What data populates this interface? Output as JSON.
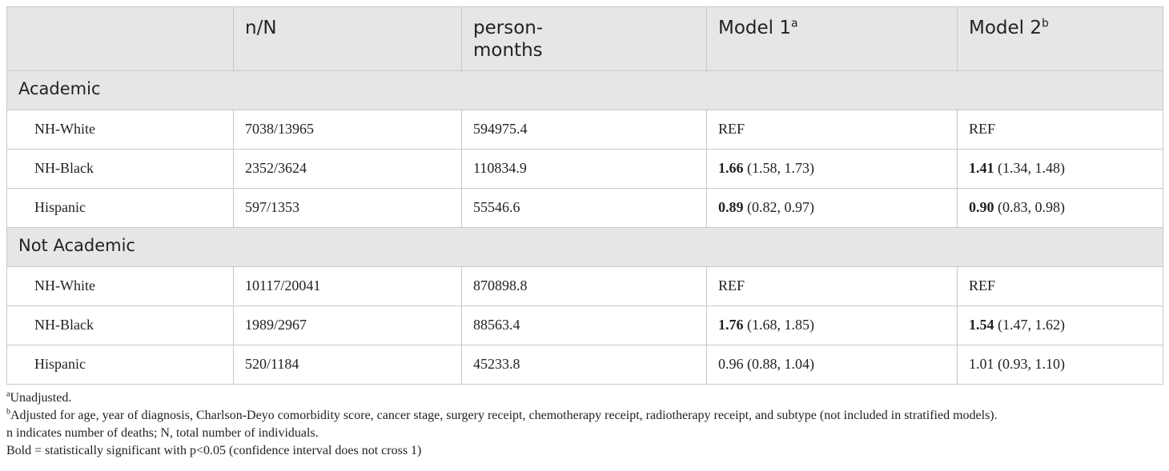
{
  "header": {
    "col1": "",
    "col2": "n/N",
    "col3_line1": "person-",
    "col3_line2": "months",
    "col4": "Model 1",
    "col4_sup": "a",
    "col5": "Model 2",
    "col5_sup": "b"
  },
  "sections": [
    {
      "label": "Academic",
      "rows": [
        {
          "group": "NH-White",
          "nN": "7038/13965",
          "pm": "594975.4",
          "m1_est": "REF",
          "m1_ci": "",
          "m1_bold": false,
          "m2_est": "REF",
          "m2_ci": "",
          "m2_bold": false
        },
        {
          "group": "NH-Black",
          "nN": "2352/3624",
          "pm": "110834.9",
          "m1_est": "1.66",
          "m1_ci": " (1.58, 1.73)",
          "m1_bold": true,
          "m2_est": "1.41",
          "m2_ci": " (1.34, 1.48)",
          "m2_bold": true
        },
        {
          "group": "Hispanic",
          "nN": "597/1353",
          "pm": "55546.6",
          "m1_est": "0.89",
          "m1_ci": " (0.82, 0.97)",
          "m1_bold": true,
          "m2_est": "0.90",
          "m2_ci": " (0.83, 0.98)",
          "m2_bold": true
        }
      ]
    },
    {
      "label": "Not Academic",
      "rows": [
        {
          "group": "NH-White",
          "nN": "10117/20041",
          "pm": "870898.8",
          "m1_est": "REF",
          "m1_ci": "",
          "m1_bold": false,
          "m2_est": "REF",
          "m2_ci": "",
          "m2_bold": false
        },
        {
          "group": "NH-Black",
          "nN": "1989/2967",
          "pm": "88563.4",
          "m1_est": "1.76",
          "m1_ci": " (1.68, 1.85)",
          "m1_bold": true,
          "m2_est": "1.54",
          "m2_ci": " (1.47, 1.62)",
          "m2_bold": true
        },
        {
          "group": "Hispanic",
          "nN": "520/1184",
          "pm": "45233.8",
          "m1_est": "0.96",
          "m1_ci": " (0.88, 1.04)",
          "m1_bold": false,
          "m2_est": "1.01",
          "m2_ci": " (0.93, 1.10)",
          "m2_bold": false
        }
      ]
    }
  ],
  "footnotes": {
    "a_mark": "a",
    "a_text": "Unadjusted.",
    "b_mark": "b",
    "b_text": "Adjusted for age, year of diagnosis, Charlson-Deyo comorbidity score, cancer stage, surgery receipt, chemotherapy receipt, radiotherapy receipt, and subtype (not included in stratified models).",
    "n_note": "n indicates number of deaths; N, total number of individuals.",
    "bold_note": "Bold = statistically significant  with p<0.05 (confidence interval does not cross 1)"
  }
}
